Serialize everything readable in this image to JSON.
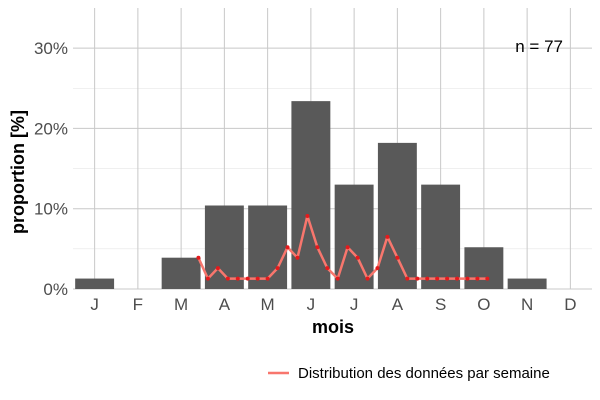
{
  "chart_data": {
    "type": "bar",
    "xlabel": "mois",
    "ylabel": "proportion [%]",
    "ylim": [
      0,
      35
    ],
    "yticks": [
      0,
      10,
      20,
      30
    ],
    "ytick_labels": [
      "0%",
      "10%",
      "20%",
      "30%"
    ],
    "grid": true,
    "annotation": "n = 77",
    "categories": [
      "J",
      "F",
      "M",
      "A",
      "M",
      "J",
      "J",
      "A",
      "S",
      "O",
      "N",
      "D"
    ],
    "bar_color": "#595959",
    "values": [
      1.3,
      0,
      3.9,
      10.4,
      10.4,
      23.4,
      13.0,
      18.2,
      13.0,
      5.2,
      1.3,
      0
    ],
    "series": [
      {
        "name": "Distribution des données par semaine",
        "type": "line",
        "color": "#f8766d",
        "point_color": "#e41a1c",
        "x": [
          3.4,
          3.62,
          3.85,
          4.08,
          4.31,
          4.54,
          4.77,
          5.0,
          5.23,
          5.46,
          5.69,
          5.92,
          6.15,
          6.38,
          6.62,
          6.85,
          7.08,
          7.31,
          7.54,
          7.77,
          8.0,
          8.23,
          8.46,
          8.69,
          8.92,
          9.15,
          9.38,
          9.62,
          9.85,
          10.08
        ],
        "values": [
          3.9,
          1.3,
          2.6,
          1.3,
          1.3,
          1.3,
          1.3,
          1.3,
          2.6,
          5.2,
          3.9,
          9.1,
          5.2,
          2.6,
          1.3,
          5.2,
          3.9,
          1.3,
          2.6,
          6.5,
          3.9,
          1.3,
          1.3,
          1.3,
          1.3,
          1.3,
          1.3,
          1.3,
          1.3,
          1.3
        ]
      }
    ],
    "legend_position": "bottom-right"
  }
}
